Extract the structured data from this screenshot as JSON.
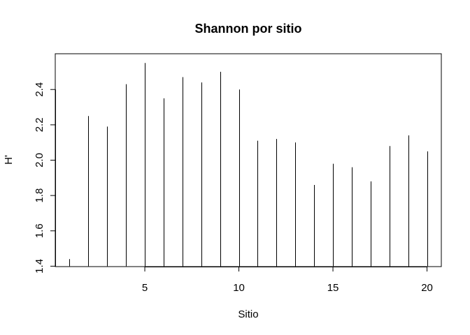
{
  "chart_data": {
    "type": "bar",
    "style": "histogram-lines",
    "title": "Shannon por sitio",
    "xlabel": "Sitio",
    "ylabel": "H'",
    "x": [
      1,
      2,
      3,
      4,
      5,
      6,
      7,
      8,
      9,
      10,
      11,
      12,
      13,
      14,
      15,
      16,
      17,
      18,
      19,
      20
    ],
    "values": [
      1.44,
      2.25,
      2.19,
      2.43,
      2.55,
      2.35,
      2.47,
      2.44,
      2.5,
      2.4,
      2.11,
      2.12,
      2.1,
      1.86,
      1.98,
      1.96,
      1.88,
      2.08,
      2.14,
      2.05
    ],
    "xlim": [
      0.24,
      20.76
    ],
    "ylim": [
      1.3976,
      2.6024
    ],
    "baseline": 1.4,
    "xticks": [
      5,
      10,
      15,
      20
    ],
    "xtick_labels": [
      "5",
      "10",
      "15",
      "20"
    ],
    "yticks": [
      1.4,
      1.6,
      1.8,
      2.0,
      2.2,
      2.4
    ],
    "ytick_labels": [
      "1.4",
      "1.6",
      "1.8",
      "2.0",
      "2.2",
      "2.4"
    ],
    "grid": false,
    "legend": "none"
  }
}
